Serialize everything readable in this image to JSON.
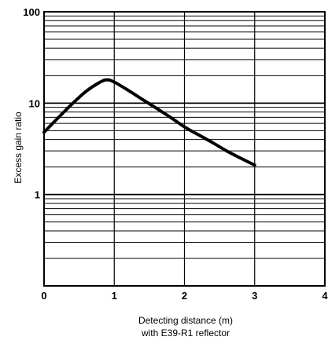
{
  "chart_data": {
    "type": "line",
    "xlabel": "Detecting distance (m)",
    "xlabel_sub": "with E39-R1 reflector",
    "ylabel": "Excess gain ratio",
    "x_scale": "linear",
    "y_scale": "log",
    "xlim": [
      0,
      4
    ],
    "ylim": [
      0.1,
      100
    ],
    "x_ticks": [
      "0",
      "1",
      "2",
      "3",
      "4"
    ],
    "y_ticks": [
      "1",
      "10",
      "100"
    ],
    "grid": true,
    "series": [
      {
        "x": [
          0.0,
          0.2,
          0.4,
          0.6,
          0.8,
          0.9,
          1.0,
          1.2,
          1.4,
          1.6,
          1.8,
          2.0,
          2.2,
          2.4,
          2.6,
          2.8,
          3.0
        ],
        "y": [
          4.8,
          6.9,
          9.8,
          13.5,
          17.0,
          18.0,
          17.0,
          13.8,
          11.0,
          8.8,
          7.0,
          5.5,
          4.5,
          3.7,
          3.0,
          2.5,
          2.1
        ]
      }
    ],
    "colors": {
      "line": "#000000",
      "grid": "#000000"
    }
  }
}
